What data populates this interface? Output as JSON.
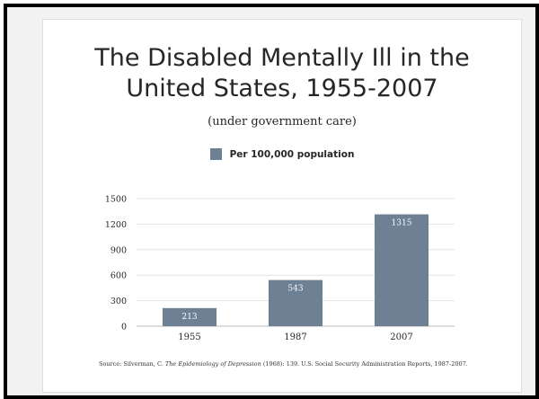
{
  "slide": {
    "title_line1": "The Disabled Mentally Ill in the",
    "title_line2": "United States, 1955-2007",
    "subtitle": "(under government care)",
    "source_prefix": "Source: Silverman, C.",
    "source_book": "The Epidemiology of Depression",
    "source_suffix": "(1968): 139. U.S. Social Security Administration Reports, 1987-2007."
  },
  "colors": {
    "bar": "#6d8094",
    "bar_label": "#ffffff",
    "grid": "#e3e3e3",
    "axis_text": "#262626"
  },
  "chart_data": {
    "type": "bar",
    "title": "The Disabled Mentally Ill in the United States, 1955-2007",
    "subtitle": "(under government care)",
    "categories": [
      "1955",
      "1987",
      "2007"
    ],
    "series": [
      {
        "name": "Per 100,000 population",
        "values": [
          213,
          543,
          1315
        ]
      }
    ],
    "data_labels": [
      "213",
      "543",
      "1315"
    ],
    "ylim": [
      0,
      1500
    ],
    "yticks": [
      0,
      300,
      600,
      900,
      1200,
      1500
    ],
    "xlabel": "",
    "ylabel": "",
    "grid": true,
    "legend": "top-center"
  }
}
